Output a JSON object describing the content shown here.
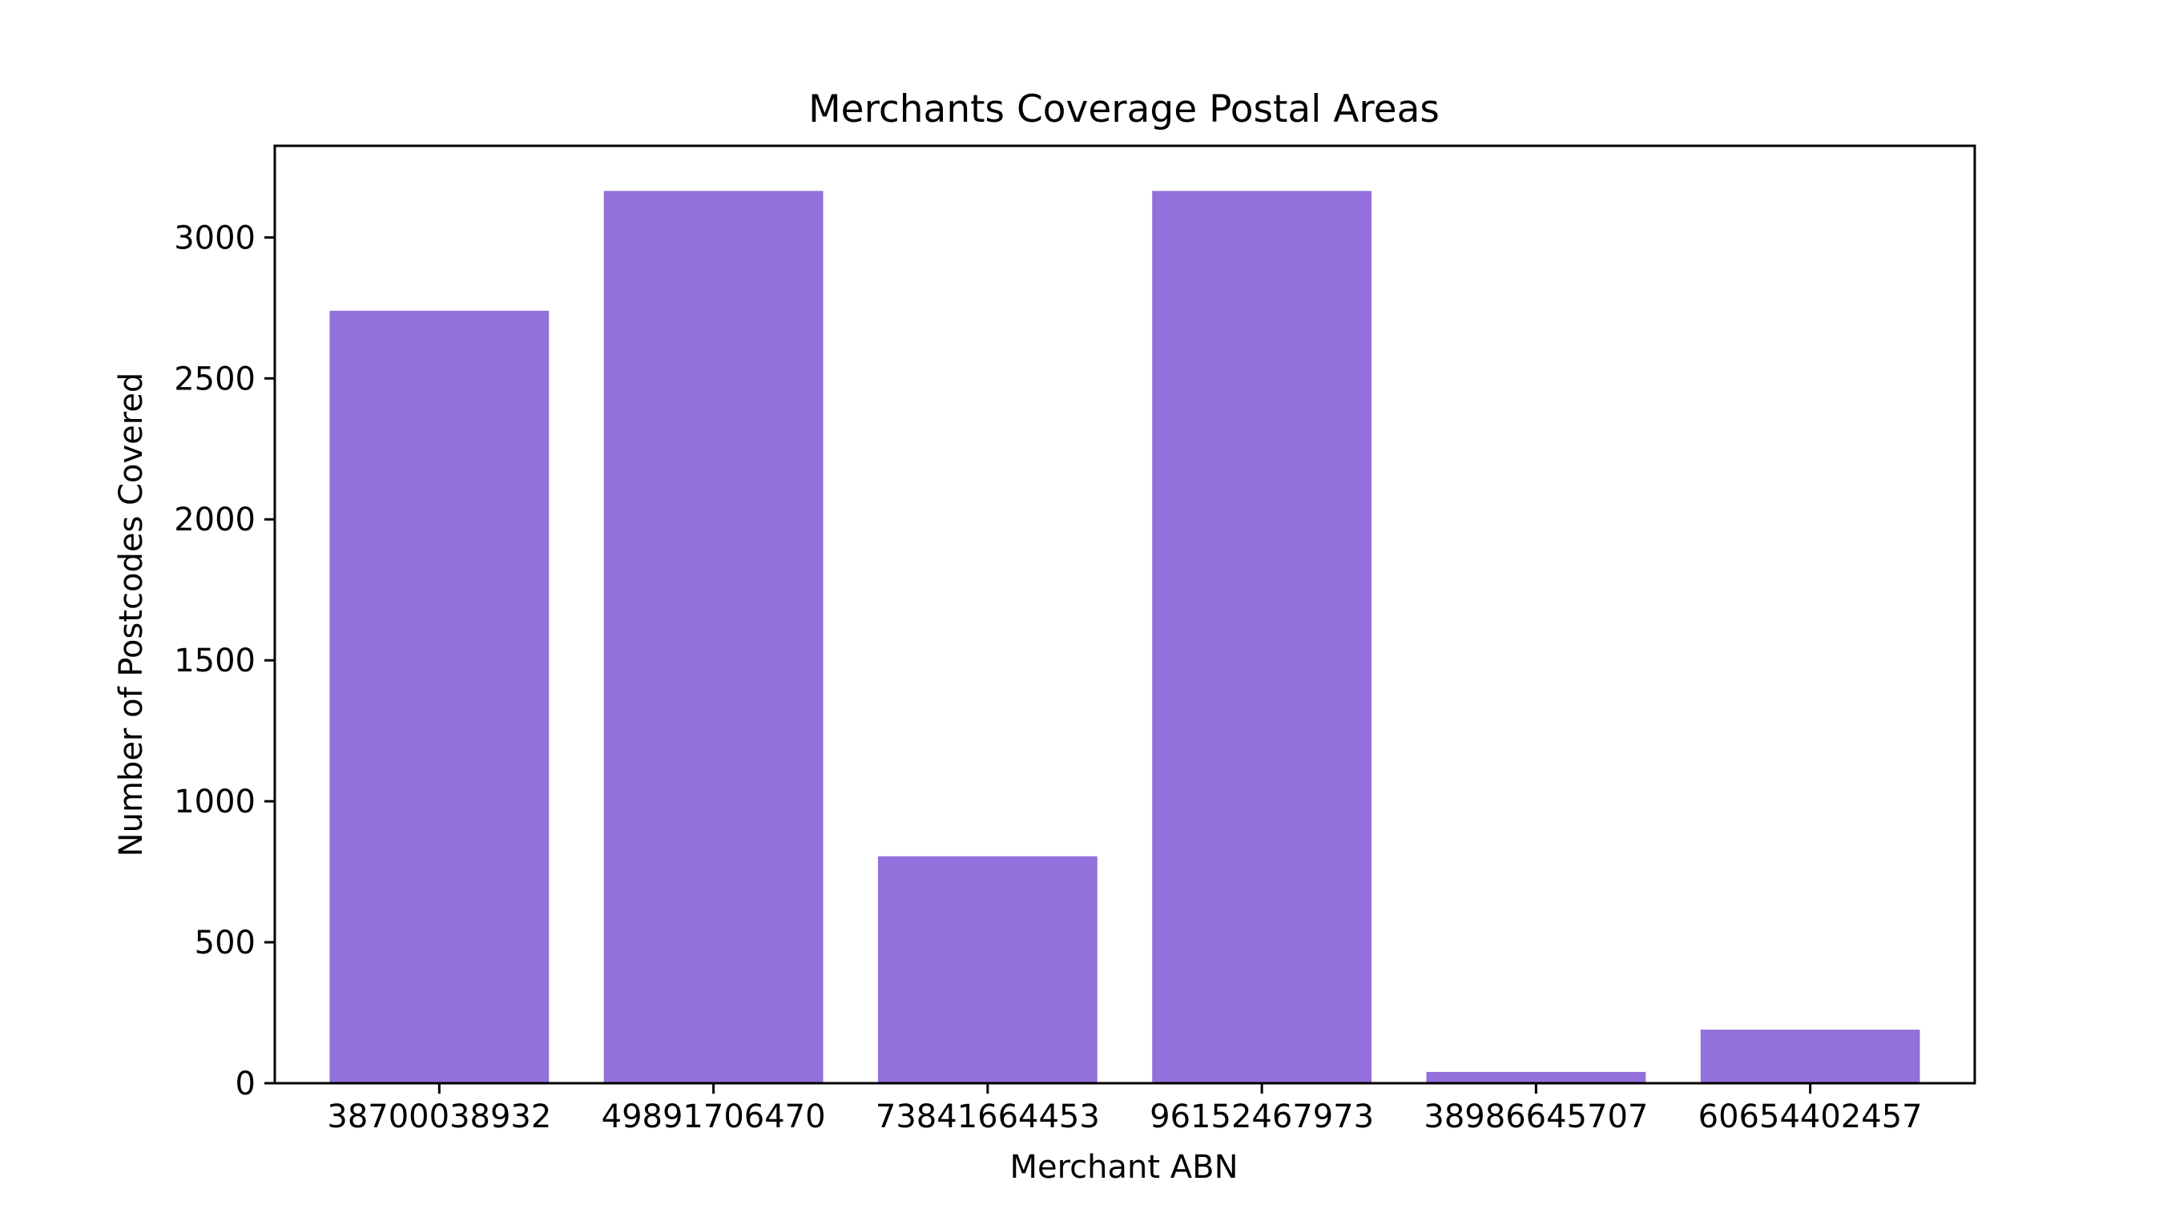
{
  "chart_data": {
    "type": "bar",
    "title": "Merchants Coverage Postal Areas",
    "xlabel": "Merchant ABN",
    "ylabel": "Number of Postcodes Covered",
    "categories": [
      "38700038932",
      "49891706470",
      "73841664453",
      "96152467973",
      "38986645707",
      "60654402457"
    ],
    "values": [
      2740,
      3165,
      805,
      3165,
      40,
      190
    ],
    "ylim": [
      0,
      3325
    ],
    "yticks": [
      0,
      500,
      1000,
      1500,
      2000,
      2500,
      3000
    ],
    "grid": false,
    "legend": "none",
    "bar_color": "#9370DB"
  }
}
